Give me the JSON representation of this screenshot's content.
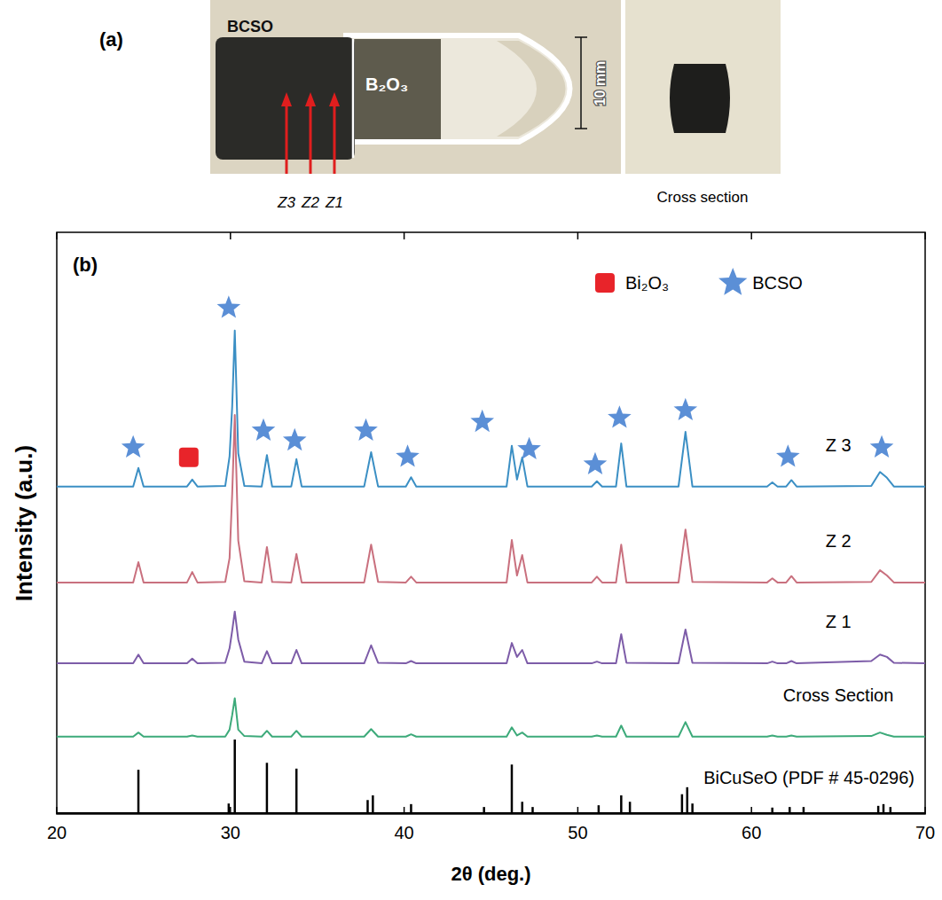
{
  "photo": {
    "label": "(a)",
    "sample": "BCSO",
    "crucible": "B₂O₃",
    "scale_bar": "10 mm",
    "zones": [
      "Z3",
      "Z2",
      "Z1"
    ],
    "inset_caption": "Cross section"
  },
  "chart_data": {
    "type": "line",
    "panel_label": "(b)",
    "xlabel": "2θ (deg.)",
    "ylabel": "Intensity (a.u.)",
    "xlim": [
      20,
      70
    ],
    "ylim": [
      0,
      100
    ],
    "xticks": [
      20,
      30,
      40,
      50,
      60,
      70
    ],
    "tick_labels": "x",
    "grid": false,
    "legend": "top right",
    "x": [
      20,
      24.4,
      24.7,
      25.0,
      27.5,
      27.8,
      28.1,
      29.7,
      29.95,
      30.1,
      30.25,
      30.45,
      30.8,
      31.8,
      32.1,
      32.4,
      33.5,
      33.8,
      34.1,
      37.7,
      38.1,
      38.5,
      40.1,
      40.4,
      40.7,
      45.9,
      46.2,
      46.5,
      46.8,
      47.1,
      50.8,
      51.1,
      51.4,
      52.2,
      52.5,
      52.8,
      55.8,
      56.2,
      56.6,
      60.9,
      61.2,
      61.5,
      62.0,
      62.3,
      62.6,
      66.9,
      67.4,
      67.8,
      68.2,
      70
    ],
    "series": [
      {
        "name": "Z 3",
        "type": "line",
        "color": "#3b8fc4",
        "values": [
          56.3,
          56.3,
          59.5,
          56.3,
          56.3,
          57.5,
          56.3,
          56.4,
          61.5,
          70,
          83.1,
          62,
          56.4,
          56.3,
          61.7,
          56.3,
          56.3,
          61.0,
          56.3,
          56.3,
          62.2,
          56.3,
          56.3,
          57.9,
          56.3,
          56.3,
          63.3,
          57.5,
          61.3,
          56.3,
          56.3,
          57.2,
          56.3,
          56.3,
          63.7,
          56.3,
          56.3,
          65.7,
          56.3,
          56.3,
          57.0,
          56.3,
          56.3,
          57.4,
          56.3,
          56.4,
          58.8,
          57.8,
          56.3,
          56.3
        ]
      },
      {
        "name": "Z 2",
        "type": "line",
        "color": "#c9707e",
        "values": [
          39.8,
          39.8,
          43.3,
          39.8,
          39.8,
          41.6,
          39.8,
          39.9,
          44,
          55,
          68.6,
          47,
          40,
          39.8,
          45.9,
          39.9,
          39.8,
          44.7,
          39.8,
          39.8,
          46.3,
          39.9,
          39.8,
          40.8,
          39.8,
          39.8,
          47.1,
          41,
          44.5,
          39.8,
          39.8,
          40.8,
          39.8,
          39.8,
          46.3,
          39.8,
          39.8,
          48.9,
          39.9,
          39.8,
          40.5,
          39.8,
          39.8,
          40.9,
          39.8,
          39.9,
          41.9,
          41.0,
          39.8,
          39.8
        ]
      },
      {
        "name": "Z 1",
        "type": "line",
        "color": "#7d5ca8",
        "values": [
          25.9,
          25.9,
          27.4,
          25.9,
          25.9,
          26.7,
          25.9,
          26.0,
          28.5,
          31.5,
          34.8,
          30,
          26.2,
          25.9,
          28.0,
          25.9,
          25.9,
          28.2,
          25.9,
          25.9,
          29.0,
          26.0,
          25.9,
          26.3,
          25.9,
          25.9,
          29.4,
          27.0,
          28.2,
          25.9,
          25.9,
          26.2,
          25.9,
          25.9,
          30.9,
          26.0,
          25.9,
          31.7,
          26.0,
          25.9,
          26.2,
          25.9,
          25.9,
          26.3,
          25.9,
          26.3,
          27.4,
          27.0,
          26.0,
          25.9
        ]
      },
      {
        "name": "Cross Section",
        "type": "line",
        "color": "#3daa7a",
        "values": [
          13.3,
          13.3,
          14.0,
          13.3,
          13.3,
          13.5,
          13.3,
          13.3,
          14.5,
          17,
          19.9,
          14.5,
          13.4,
          13.3,
          14.3,
          13.3,
          13.3,
          14.3,
          13.3,
          13.3,
          14.6,
          13.3,
          13.3,
          13.7,
          13.3,
          13.3,
          14.9,
          13.5,
          14.0,
          13.3,
          13.3,
          13.5,
          13.3,
          13.3,
          15.2,
          13.3,
          13.3,
          15.8,
          13.3,
          13.3,
          13.5,
          13.3,
          13.3,
          13.5,
          13.3,
          13.4,
          14.0,
          13.6,
          13.3,
          13.3
        ]
      },
      {
        "name": "BiCuSeO (PDF # 45-0296)",
        "type": "stick",
        "color": "#000000",
        "x": [
          24.7,
          29.9,
          30.25,
          32.1,
          33.8,
          37.9,
          38.2,
          40.4,
          44.6,
          46.2,
          46.8,
          47.4,
          51.2,
          52.5,
          53.0,
          56.0,
          56.3,
          56.6,
          61.2,
          62.2,
          63.0,
          67.3,
          67.6,
          68.0
        ],
        "values": [
          7.6,
          1.8,
          12.8,
          8.8,
          7.8,
          2.4,
          3.2,
          1.7,
          1.2,
          8.5,
          2.1,
          1.2,
          1.5,
          3.2,
          2.1,
          3.4,
          4.6,
          1.8,
          1.1,
          1.2,
          1.2,
          1.4,
          1.7,
          1.2
        ]
      },
      {
        "name": "Bi₂O₃",
        "type": "scatter",
        "marker": "square",
        "color": "#e8242a",
        "x": [
          27.6
        ],
        "values": [
          61.3
        ]
      },
      {
        "name": "BCSO",
        "type": "scatter",
        "marker": "star",
        "color": "#5b8fd6",
        "x": [
          24.4,
          29.9,
          31.9,
          33.7,
          37.8,
          40.2,
          44.5,
          47.2,
          51.0,
          52.4,
          56.2,
          62.1,
          67.5
        ],
        "values": [
          63.0,
          87.0,
          65.9,
          64.2,
          65.9,
          61.4,
          67.4,
          62.7,
          60.1,
          68.1,
          69.4,
          61.4,
          63.0
        ]
      }
    ]
  }
}
